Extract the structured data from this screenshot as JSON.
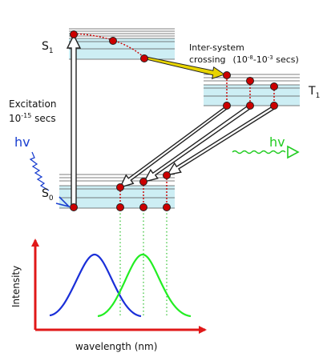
{
  "states": {
    "s1": {
      "label": "S",
      "subscript": "1"
    },
    "s0": {
      "label": "S",
      "subscript": "0"
    },
    "t1": {
      "label": "T",
      "subscript": "1"
    }
  },
  "labels": {
    "isc_line1": "Inter-system",
    "isc_line2": "crossing",
    "isc_time_open": "(10",
    "isc_exp1": "-8",
    "isc_dash": "-10",
    "isc_exp2": "-3",
    "isc_time_close": " secs)",
    "excitation": "Excitation",
    "exc_time_base": "10",
    "exc_time_exp": "-15",
    "exc_time_unit": " secs",
    "hv_in": "hv",
    "hv_out": "hv",
    "intensity": "Intensity",
    "wavelength": "wavelength (nm)"
  },
  "colors": {
    "band": "#cdeef4",
    "level_line": "#555555",
    "dot": "#cc0000",
    "dashed": "#cc0000",
    "isc_arrow": "#e8d400",
    "absorbed_light": "#1a3fd0",
    "emitted_light": "#22cc22",
    "axis": "#e01818",
    "absorption_curve": "#1a2fd8",
    "emission_curve": "#22ee22",
    "transition_outline": "#222222"
  }
}
